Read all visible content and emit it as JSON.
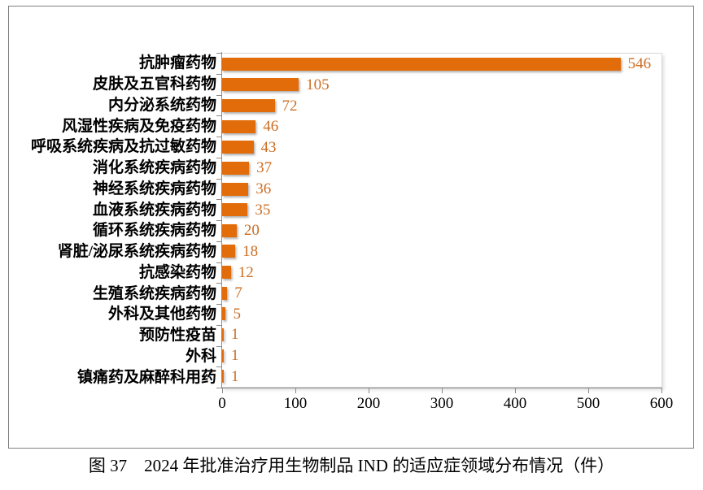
{
  "figure": {
    "caption": "图 37　2024 年批准治疗用生物制品 IND 的适应症领域分布情况（件）"
  },
  "chart_data": {
    "type": "bar",
    "orientation": "horizontal",
    "title": "",
    "categories": [
      "抗肿瘤药物",
      "皮肤及五官科药物",
      "内分泌系统药物",
      "风湿性疾病及免疫药物",
      "呼吸系统疾病及抗过敏药物",
      "消化系统疾病药物",
      "神经系统疾病药物",
      "血液系统疾病药物",
      "循环系统疾病药物",
      "肾脏/泌尿系统疾病药物",
      "抗感染药物",
      "生殖系统疾病药物",
      "外科及其他药物",
      "预防性疫苗",
      "外科",
      "镇痛药及麻醉科用药"
    ],
    "values": [
      546,
      105,
      72,
      46,
      43,
      37,
      36,
      35,
      20,
      18,
      12,
      7,
      5,
      1,
      1,
      1
    ],
    "xlabel": "",
    "ylabel": "",
    "xlim": [
      0,
      600
    ],
    "x_ticks": [
      0,
      100,
      200,
      300,
      400,
      500,
      600
    ],
    "grid": false,
    "legend_position": "none",
    "data_labels": true,
    "colors": {
      "bar": "#e36c0a",
      "value_label": "#cd6e23",
      "axis": "#8a8a8a",
      "plot_border": "#d9d9d9",
      "category_label": "#000000",
      "figure_border": "#7f7f7f"
    }
  }
}
